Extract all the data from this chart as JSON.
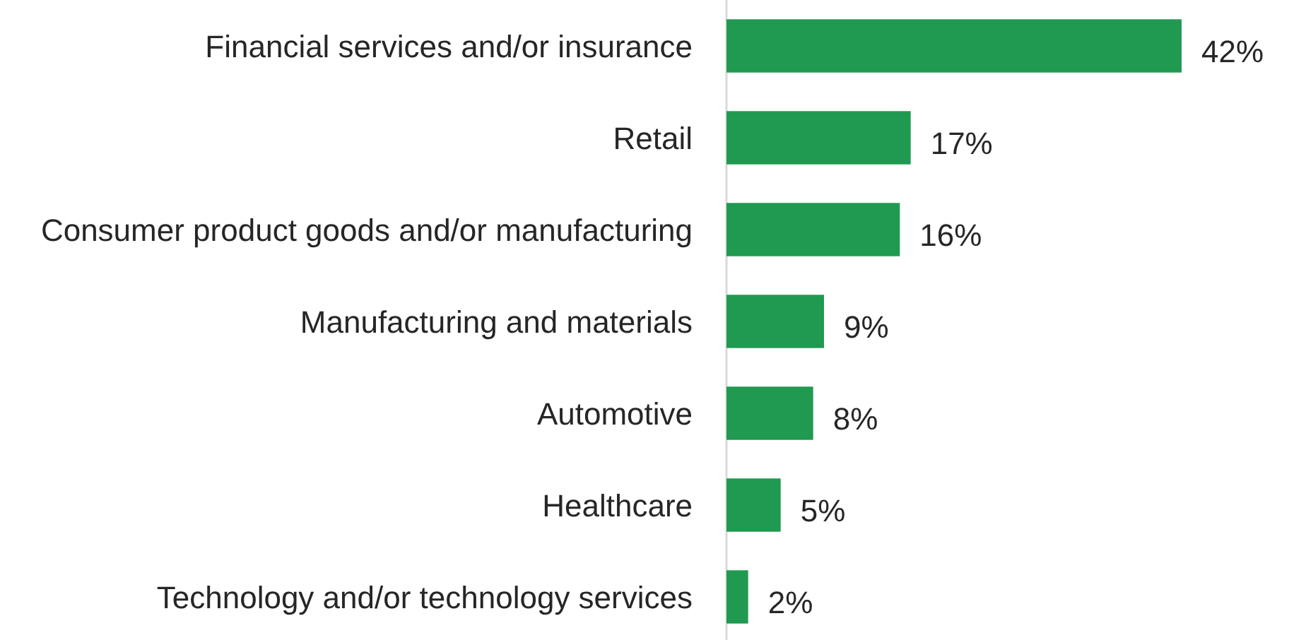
{
  "chart_data": {
    "type": "bar",
    "orientation": "horizontal",
    "categories": [
      "Financial services and/or insurance",
      "Retail",
      "Consumer product goods and/or manufacturing",
      "Manufacturing and materials",
      "Automotive",
      "Healthcare",
      "Technology and/or technology services"
    ],
    "values": [
      42,
      17,
      16,
      9,
      8,
      5,
      2
    ],
    "value_labels": [
      "42%",
      "17%",
      "16%",
      "9%",
      "8%",
      "5%",
      "2%"
    ],
    "color": "#1f9a50"
  }
}
